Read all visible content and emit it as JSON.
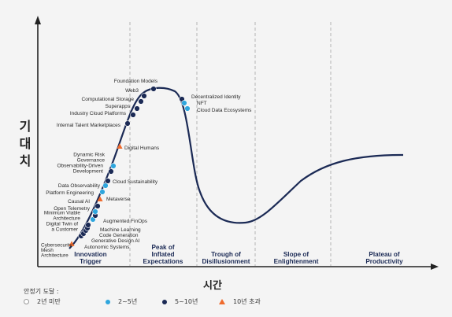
{
  "y_axis_label": [
    "기",
    "대",
    "치"
  ],
  "x_axis_label": "시간",
  "colors": {
    "curve": "#1b2a55",
    "under_2": "#ffffff",
    "y2_5": "#2fa6dd",
    "y5_10": "#1b2a55",
    "over_10": "#ef6b2d",
    "phase_text": "#1b2a55"
  },
  "phases": [
    {
      "label": [
        "Innovation",
        "Trigger"
      ]
    },
    {
      "label": [
        "Peak of",
        "Inflated",
        "Expectations"
      ]
    },
    {
      "label": [
        "Trough of",
        "Disillusionment"
      ]
    },
    {
      "label": [
        "Slope of",
        "Enlightenment"
      ]
    },
    {
      "label": [
        "Plateau of",
        "Productivity"
      ]
    }
  ],
  "legend": {
    "title": "안정기 도달 :",
    "items": [
      {
        "label": "2년 미만",
        "marker": "circle-open"
      },
      {
        "label": "2~5년",
        "marker": "circle-light-blue"
      },
      {
        "label": "5~10년",
        "marker": "circle-dark-navy"
      },
      {
        "label": "10년 초과",
        "marker": "triangle-orange"
      }
    ]
  },
  "technologies": [
    {
      "name": "Cybersecurity Mesh Architecture",
      "lines": [
        "Cybersecurity",
        "Mesh",
        "Architecture"
      ],
      "phase": "Innovation Trigger",
      "years_to_plateau": "10년 초과"
    },
    {
      "name": "Autonomic Systems",
      "lines": [
        "Autonomic Systems"
      ],
      "phase": "Innovation Trigger",
      "years_to_plateau": "5~10년"
    },
    {
      "name": "Generative Design AI",
      "lines": [
        "Generative Design AI"
      ],
      "phase": "Innovation Trigger",
      "years_to_plateau": "5~10년"
    },
    {
      "name": "Code Generation",
      "lines": [
        "Code Generation"
      ],
      "phase": "Innovation Trigger",
      "years_to_plateau": "5~10년"
    },
    {
      "name": "Machine Learning Code Generation",
      "lines": [
        "Machine Learning"
      ],
      "phase": "Innovation Trigger",
      "years_to_plateau": "5~10년"
    },
    {
      "name": "Digital Twin of a Customer",
      "lines": [
        "Digital Twin of",
        "a Customer"
      ],
      "phase": "Innovation Trigger",
      "years_to_plateau": "5~10년"
    },
    {
      "name": "Augmented FinOps",
      "lines": [
        "Augmented FinOps"
      ],
      "phase": "Innovation Trigger",
      "years_to_plateau": "2~5년"
    },
    {
      "name": "Minimum Viable Architecture",
      "lines": [
        "Minimum Viable",
        "Architecture"
      ],
      "phase": "Innovation Trigger",
      "years_to_plateau": "5~10년"
    },
    {
      "name": "Open Telemetry",
      "lines": [
        "Open Telemetry"
      ],
      "phase": "Innovation Trigger",
      "years_to_plateau": "2~5년"
    },
    {
      "name": "Causal AI",
      "lines": [
        "Causal AI"
      ],
      "phase": "Innovation Trigger",
      "years_to_plateau": "5~10년"
    },
    {
      "name": "Metaverse",
      "lines": [
        "Metaverse"
      ],
      "phase": "Innovation Trigger",
      "years_to_plateau": "10년 초과"
    },
    {
      "name": "Platform Engineering",
      "lines": [
        "Platform Engineering"
      ],
      "phase": "Innovation Trigger",
      "years_to_plateau": "2~5년"
    },
    {
      "name": "Data Observability",
      "lines": [
        "Data Observability"
      ],
      "phase": "Innovation Trigger",
      "years_to_plateau": "2~5년"
    },
    {
      "name": "Cloud Sustainability",
      "lines": [
        "Cloud Sustainability"
      ],
      "phase": "Innovation Trigger",
      "years_to_plateau": "5~10년"
    },
    {
      "name": "Observability-Driven Development",
      "lines": [
        "Observability-Driven",
        "Development"
      ],
      "phase": "Innovation Trigger",
      "years_to_plateau": "5~10년"
    },
    {
      "name": "Dynamic Risk Governance",
      "lines": [
        "Dynamic Risk",
        "Governance"
      ],
      "phase": "Innovation Trigger",
      "years_to_plateau": "2~5년"
    },
    {
      "name": "Digital Humans",
      "lines": [
        "Digital Humans"
      ],
      "phase": "Innovation Trigger",
      "years_to_plateau": "10년 초과"
    },
    {
      "name": "Internal Talent Marketplaces",
      "lines": [
        "Internal Talent Marketplaces"
      ],
      "phase": "Innovation Trigger",
      "years_to_plateau": "5~10년"
    },
    {
      "name": "Industry Cloud Platforms",
      "lines": [
        "Industry Cloud Platforms"
      ],
      "phase": "Peak of Inflated Expectations",
      "years_to_plateau": "5~10년"
    },
    {
      "name": "Superapps",
      "lines": [
        "Superapps"
      ],
      "phase": "Peak of Inflated Expectations",
      "years_to_plateau": "5~10년"
    },
    {
      "name": "Computational Storage",
      "lines": [
        "Computational Storage"
      ],
      "phase": "Peak of Inflated Expectations",
      "years_to_plateau": "5~10년"
    },
    {
      "name": "Web3",
      "lines": [
        "Web3"
      ],
      "phase": "Peak of Inflated Expectations",
      "years_to_plateau": "5~10년"
    },
    {
      "name": "Foundation Models",
      "lines": [
        "Foundation Models"
      ],
      "phase": "Peak of Inflated Expectations",
      "years_to_plateau": "5~10년"
    },
    {
      "name": "Decentralized Identity",
      "lines": [
        "Decentralized Identity"
      ],
      "phase": "Peak of Inflated Expectations",
      "years_to_plateau": "5~10년"
    },
    {
      "name": "NFT",
      "lines": [
        "NFT"
      ],
      "phase": "Peak of Inflated Expectations",
      "years_to_plateau": "2~5년"
    },
    {
      "name": "Cloud Data Ecosystems",
      "lines": [
        "Cloud Data Ecosystems"
      ],
      "phase": "Peak of Inflated Expectations",
      "years_to_plateau": "2~5년"
    }
  ]
}
